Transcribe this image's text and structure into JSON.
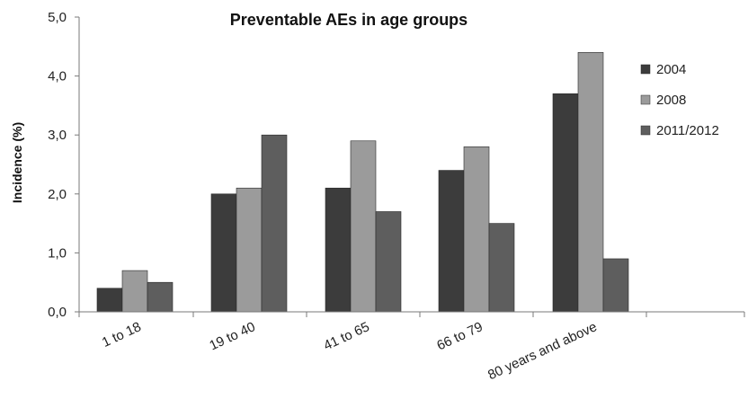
{
  "chart_data": {
    "type": "bar",
    "title": "Preventable AEs in age groups",
    "xlabel": "",
    "ylabel": "Incidence (%)",
    "ylim": [
      0,
      5
    ],
    "yticks": [
      "0,0",
      "1,0",
      "2,0",
      "3,0",
      "4,0",
      "5,0"
    ],
    "categories": [
      "1 to 18",
      "19 to 40",
      "41 to 65",
      "66 to 79",
      "80 years and above"
    ],
    "series": [
      {
        "name": "2004",
        "values": [
          0.4,
          2.0,
          2.1,
          2.4,
          3.7
        ],
        "color": "#3c3c3c"
      },
      {
        "name": "2008",
        "values": [
          0.7,
          2.1,
          2.9,
          2.8,
          4.4
        ],
        "color": "#9b9b9b"
      },
      {
        "name": "2011/2012",
        "values": [
          0.5,
          3.0,
          1.7,
          1.5,
          0.9
        ],
        "color": "#5e5e5e"
      }
    ],
    "grid": false,
    "legend": "right"
  }
}
